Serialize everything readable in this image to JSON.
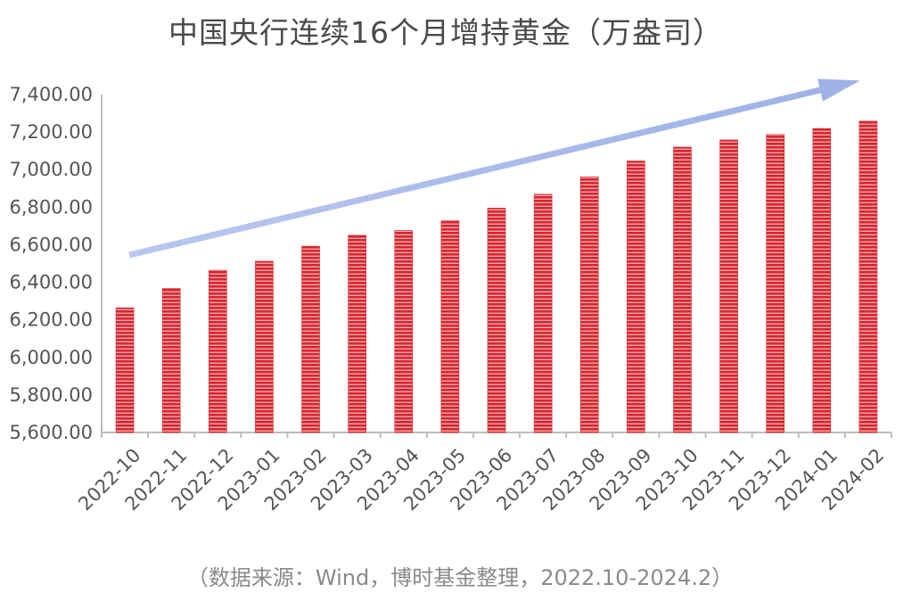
{
  "chart_data": {
    "type": "bar",
    "title": "中国央行连续16个月增持黄金（万盎司）",
    "categories": [
      "2022-10",
      "2022-11",
      "2022-12",
      "2023-01",
      "2023-02",
      "2023-03",
      "2023-04",
      "2023-05",
      "2023-06",
      "2023-07",
      "2023-08",
      "2023-09",
      "2023-10",
      "2023-11",
      "2023-12",
      "2024-01",
      "2024-02"
    ],
    "values": [
      6264,
      6367,
      6464,
      6512,
      6592,
      6650,
      6676,
      6727,
      6795,
      6869,
      6962,
      7046,
      7120,
      7158,
      7187,
      7219,
      7258
    ],
    "ylim": [
      5600,
      7400
    ],
    "yticks": [
      "5,600.00",
      "5,800.00",
      "6,000.00",
      "6,200.00",
      "6,400.00",
      "6,600.00",
      "6,800.00",
      "7,000.00",
      "7,200.00",
      "7,400.00"
    ],
    "grid": false,
    "bar_color": "#d7262f",
    "trend_arrow_color": "#a9b9e6"
  },
  "source_note": "（数据来源：Wind，博时基金整理，2022.10-2024.2）"
}
